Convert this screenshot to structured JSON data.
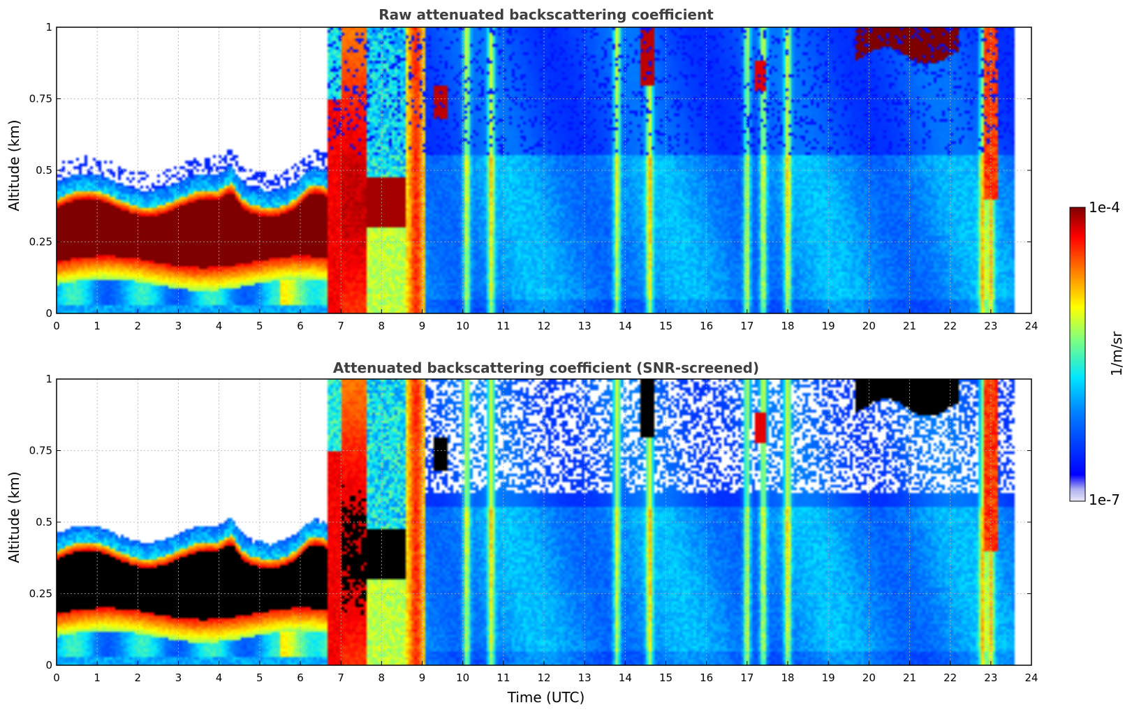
{
  "chart_data": [
    {
      "type": "heatmap",
      "title": "Raw attenuated backscattering coefficient",
      "xlabel": "",
      "ylabel": "Altitude (km)",
      "xlim": [
        0,
        24
      ],
      "ylim": [
        0,
        1
      ],
      "xticks": [
        "0",
        "1",
        "2",
        "3",
        "4",
        "5",
        "6",
        "7",
        "8",
        "9",
        "10",
        "11",
        "12",
        "13",
        "14",
        "15",
        "16",
        "17",
        "18",
        "19",
        "20",
        "21",
        "22",
        "23",
        "24"
      ],
      "yticks": [
        "0",
        "0.25",
        "0.5",
        "0.75",
        "1"
      ],
      "grid": true,
      "data_end_time": 23.6,
      "screened": false,
      "features": [
        {
          "name": "dense boundary layer / fog layer",
          "t_start": 0,
          "t_end": 6.7,
          "alt_bottom": 0.17,
          "alt_top": 0.42
        },
        {
          "name": "elevated layer",
          "t_start": 7.6,
          "t_end": 8.5,
          "alt_bottom": 0.3,
          "alt_top": 0.5
        },
        {
          "name": "upper cloud",
          "t_start": 19.7,
          "t_end": 22.2,
          "alt_bottom": 0.88,
          "alt_top": 1.0
        }
      ]
    },
    {
      "type": "heatmap",
      "title": "Attenuated backscattering coefficient (SNR-screened)",
      "xlabel": "Time (UTC)",
      "ylabel": "Altitude (km)",
      "xlim": [
        0,
        24
      ],
      "ylim": [
        0,
        1
      ],
      "xticks": [
        "0",
        "1",
        "2",
        "3",
        "4",
        "5",
        "6",
        "7",
        "8",
        "9",
        "10",
        "11",
        "12",
        "13",
        "14",
        "15",
        "16",
        "17",
        "18",
        "19",
        "20",
        "21",
        "22",
        "23",
        "24"
      ],
      "yticks": [
        "0",
        "0.25",
        "0.5",
        "0.75",
        "1"
      ],
      "grid": true,
      "data_end_time": 23.6,
      "screened": true
    }
  ],
  "colorbar": {
    "min_label": "1e-7",
    "max_label": "1e-4",
    "unit_label": "1/m/sr",
    "scale": "log",
    "colormap": [
      "#e8e8f8",
      "#00007f",
      "#0000ff",
      "#007fff",
      "#00ffff",
      "#7fff7f",
      "#ffff00",
      "#ff7f00",
      "#ff0000",
      "#7f0000"
    ]
  }
}
